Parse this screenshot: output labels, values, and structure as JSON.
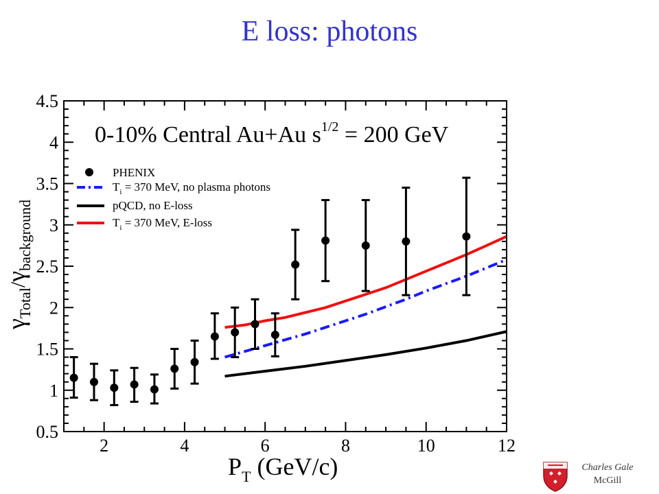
{
  "slide": {
    "title": "E loss: photons",
    "author": "Charles Gale",
    "affiliation": "McGill"
  },
  "chart_data": {
    "type": "scatter",
    "annotation": {
      "main": "0-10% Central Au+Au s",
      "sup": "1/2",
      "tail": " = 200 GeV"
    },
    "xlabel": {
      "main": "P",
      "sub": "T",
      "tail": " (GeV/c)"
    },
    "ylabel": {
      "g1": "γ",
      "s1": "Total",
      "sep": "/",
      "g2": "γ",
      "s2": "background"
    },
    "xlim": [
      1,
      12
    ],
    "ylim": [
      0.5,
      4.5
    ],
    "x_ticks": [
      2,
      4,
      6,
      8,
      10,
      12
    ],
    "y_ticks": [
      0.5,
      1,
      1.5,
      2,
      2.5,
      3,
      3.5,
      4,
      4.5
    ],
    "y_tick_labels": [
      "0.5",
      "1",
      "1.5",
      "2",
      "2.5",
      "3",
      "3.5",
      "4",
      "4.5"
    ],
    "legend": [
      {
        "id": "phenix",
        "kind": "marker",
        "text": "PHENIX",
        "color": "#000000"
      },
      {
        "id": "noplasma",
        "kind": "dashdot",
        "text_a": "T",
        "text_sub": "i",
        "text_b": " = 370 MeV, no plasma photons",
        "color": "#1a1aff"
      },
      {
        "id": "pqcd",
        "kind": "solid",
        "text": "pQCD, no E-loss",
        "color": "#000000"
      },
      {
        "id": "eloss",
        "kind": "solid",
        "text_a": "T",
        "text_sub": "i",
        "text_b": " = 370 MeV, E-loss",
        "color": "#ee1111"
      }
    ],
    "legend_position": "upper-left",
    "points": [
      {
        "x": 1.25,
        "y": 1.15,
        "lo": 0.91,
        "hi": 1.4
      },
      {
        "x": 1.75,
        "y": 1.1,
        "lo": 0.88,
        "hi": 1.32
      },
      {
        "x": 2.25,
        "y": 1.03,
        "lo": 0.82,
        "hi": 1.24
      },
      {
        "x": 2.75,
        "y": 1.07,
        "lo": 0.86,
        "hi": 1.27
      },
      {
        "x": 3.25,
        "y": 1.01,
        "lo": 0.84,
        "hi": 1.19
      },
      {
        "x": 3.75,
        "y": 1.26,
        "lo": 1.02,
        "hi": 1.5
      },
      {
        "x": 4.25,
        "y": 1.34,
        "lo": 1.08,
        "hi": 1.6
      },
      {
        "x": 4.75,
        "y": 1.65,
        "lo": 1.38,
        "hi": 1.93
      },
      {
        "x": 5.25,
        "y": 1.7,
        "lo": 1.4,
        "hi": 2.0
      },
      {
        "x": 5.75,
        "y": 1.8,
        "lo": 1.5,
        "hi": 2.1
      },
      {
        "x": 6.25,
        "y": 1.67,
        "lo": 1.41,
        "hi": 1.93
      },
      {
        "x": 6.75,
        "y": 2.52,
        "lo": 2.1,
        "hi": 2.94
      },
      {
        "x": 7.5,
        "y": 2.81,
        "lo": 2.32,
        "hi": 3.3
      },
      {
        "x": 8.5,
        "y": 2.75,
        "lo": 2.2,
        "hi": 3.3
      },
      {
        "x": 9.5,
        "y": 2.8,
        "lo": 2.15,
        "hi": 3.45
      },
      {
        "x": 11.0,
        "y": 2.86,
        "lo": 2.15,
        "hi": 3.57
      }
    ],
    "series": [
      {
        "id": "eloss",
        "color": "#ee1111",
        "style": "solid",
        "x": [
          5,
          5.5,
          6,
          6.5,
          7,
          7.5,
          8,
          8.5,
          9,
          9.5,
          10,
          10.5,
          11,
          11.5,
          12
        ],
        "y": [
          1.76,
          1.79,
          1.84,
          1.88,
          1.94,
          2.0,
          2.08,
          2.16,
          2.24,
          2.34,
          2.44,
          2.54,
          2.64,
          2.75,
          2.86
        ]
      },
      {
        "id": "noplasma",
        "color": "#1a1aff",
        "style": "dashdot",
        "x": [
          5,
          5.5,
          6,
          6.5,
          7,
          7.5,
          8,
          8.5,
          9,
          9.5,
          10,
          10.5,
          11,
          11.5,
          12
        ],
        "y": [
          1.4,
          1.47,
          1.54,
          1.61,
          1.68,
          1.76,
          1.84,
          1.92,
          2.01,
          2.1,
          2.2,
          2.29,
          2.38,
          2.48,
          2.58
        ]
      },
      {
        "id": "pqcd",
        "color": "#000000",
        "style": "solid",
        "x": [
          5,
          6,
          7,
          8,
          9,
          10,
          11,
          12
        ],
        "y": [
          1.17,
          1.23,
          1.29,
          1.36,
          1.43,
          1.51,
          1.6,
          1.71
        ]
      }
    ],
    "grid": false
  }
}
